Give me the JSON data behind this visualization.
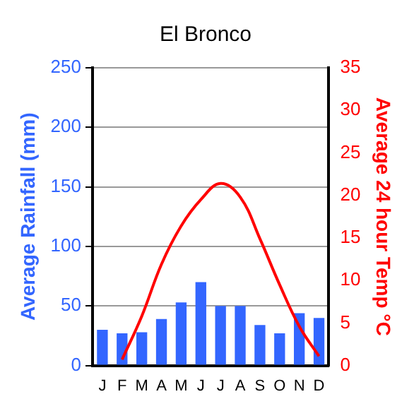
{
  "chart_data": {
    "type": "bar",
    "title": "El Bronco",
    "categories": [
      "J",
      "F",
      "M",
      "A",
      "M",
      "J",
      "J",
      "A",
      "S",
      "O",
      "N",
      "D"
    ],
    "series": [
      {
        "color": "#3366ff",
        "values": [
          30,
          27,
          28,
          39,
          53,
          70,
          50,
          50,
          34,
          27,
          44,
          40
        ]
      },
      {
        "type": "line",
        "axis": "y2",
        "color": "#ff0000",
        "values": [
          null,
          0.7,
          5.8,
          11.9,
          16.4,
          19.5,
          21.4,
          19.8,
          14.9,
          9.5,
          4.6,
          1.1
        ]
      }
    ],
    "ylabel": "Average Rainfall (mm)",
    "y2label": "Average 24 hour Temp °C",
    "ylim": [
      0,
      250
    ],
    "yticks": [
      0,
      50,
      100,
      150,
      200,
      250
    ],
    "y2lim": [
      0,
      35
    ],
    "y2ticks": [
      0,
      5,
      10,
      15,
      20,
      25,
      30,
      35
    ],
    "grid": "y",
    "legend": false,
    "marker": "none"
  }
}
